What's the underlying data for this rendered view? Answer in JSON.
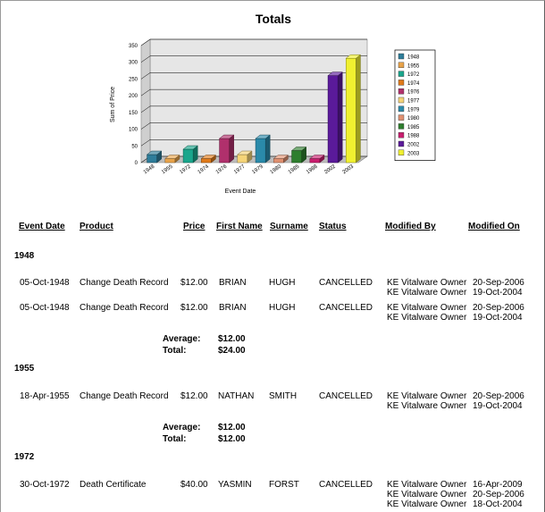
{
  "report": {
    "title": "Totals"
  },
  "chart_data": {
    "type": "bar",
    "title": "",
    "xlabel": "Event Date",
    "ylabel": "Sum of Price",
    "ylim": [
      0,
      350
    ],
    "yticks": [
      0,
      50,
      100,
      150,
      200,
      250,
      300,
      350
    ],
    "grid": true,
    "legend_position": "right",
    "categories": [
      "1948",
      "1955",
      "1972",
      "1974",
      "1976",
      "1977",
      "1979",
      "1980",
      "1985",
      "1988",
      "2002",
      "2003"
    ],
    "values": [
      24,
      12,
      40,
      12,
      72,
      24,
      72,
      12,
      36,
      12,
      260,
      312
    ],
    "colors": [
      "#2e7d9a",
      "#e8a34a",
      "#1aa68c",
      "#e07a1a",
      "#b0306c",
      "#f5d478",
      "#2a8aaa",
      "#e09070",
      "#2e7e2e",
      "#c81e6e",
      "#5a1a9a",
      "#f0f030"
    ]
  },
  "columns": {
    "event_date": "Event Date",
    "product": "Product",
    "price": "Price",
    "first_name": "First Name",
    "surname": "Surname",
    "status": "Status",
    "modified_by": "Modified By",
    "modified_on": "Modified On"
  },
  "summary_labels": {
    "average": "Average:",
    "total": "Total:"
  },
  "groups": [
    {
      "year": "1948",
      "rows": [
        {
          "event_date": "05-Oct-1948",
          "product": "Change Death Record",
          "price": "$12.00",
          "first_name": "BRIAN",
          "surname": "HUGH",
          "status": "CANCELLED",
          "modifications": [
            {
              "by": "KE Vitalware Owner",
              "on": "20-Sep-2006"
            },
            {
              "by": "KE Vitalware Owner",
              "on": "19-Oct-2004"
            }
          ]
        },
        {
          "event_date": "05-Oct-1948",
          "product": "Change Death Record",
          "price": "$12.00",
          "first_name": "BRIAN",
          "surname": "HUGH",
          "status": "CANCELLED",
          "modifications": [
            {
              "by": "KE Vitalware Owner",
              "on": "20-Sep-2006"
            },
            {
              "by": "KE Vitalware Owner",
              "on": "19-Oct-2004"
            }
          ]
        }
      ],
      "average": "$12.00",
      "total": "$24.00"
    },
    {
      "year": "1955",
      "rows": [
        {
          "event_date": "18-Apr-1955",
          "product": "Change Death Record",
          "price": "$12.00",
          "first_name": "NATHAN",
          "surname": "SMITH",
          "status": "CANCELLED",
          "modifications": [
            {
              "by": "KE Vitalware Owner",
              "on": "20-Sep-2006"
            },
            {
              "by": "KE Vitalware Owner",
              "on": "19-Oct-2004"
            }
          ]
        }
      ],
      "average": "$12.00",
      "total": "$12.00"
    },
    {
      "year": "1972",
      "rows": [
        {
          "event_date": "30-Oct-1972",
          "product": "Death Certificate",
          "price": "$40.00",
          "first_name": "YASMIN",
          "surname": "FORST",
          "status": "CANCELLED",
          "modifications": [
            {
              "by": "KE Vitalware Owner",
              "on": "16-Apr-2009"
            },
            {
              "by": "KE Vitalware Owner",
              "on": "20-Sep-2006"
            },
            {
              "by": "KE Vitalware Owner",
              "on": "18-Oct-2004"
            }
          ]
        }
      ]
    }
  ]
}
